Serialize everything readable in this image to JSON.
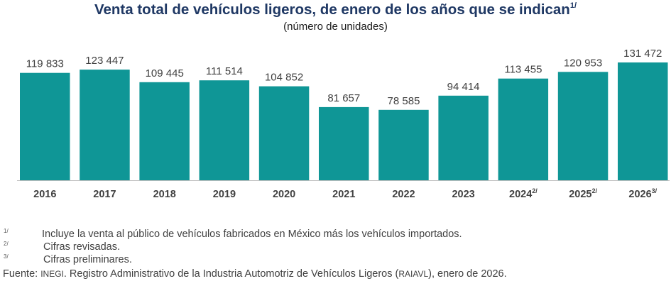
{
  "header": {
    "title": "Venta total de vehículos ligeros, de enero de los años que se indican",
    "title_mark": "1/",
    "subtitle": "(número de unidades)"
  },
  "chart_data": {
    "type": "bar",
    "title": "Venta total de vehículos ligeros, de enero de los años que se indican",
    "subtitle": "(número de unidades)",
    "categories": [
      "2016",
      "2017",
      "2018",
      "2019",
      "2020",
      "2021",
      "2022",
      "2023",
      "2024",
      "2025",
      "2026"
    ],
    "category_marks": [
      "",
      "",
      "",
      "",
      "",
      "",
      "",
      "",
      "2/",
      "2/",
      "3/"
    ],
    "values": [
      119833,
      123447,
      109445,
      111514,
      104852,
      81657,
      78585,
      94414,
      113455,
      120953,
      131472
    ],
    "value_labels": [
      "119 833",
      "123 447",
      "109 445",
      "111 514",
      "104 852",
      "81 657",
      "78 585",
      "94 414",
      "113 455",
      "120 953",
      "131 472"
    ],
    "xlabel": "",
    "ylabel": "",
    "ylim": [
      0,
      131472
    ],
    "grid": false,
    "legend": "none",
    "bar_color": "#0f9696"
  },
  "notes": [
    {
      "mark": "1/",
      "text": "Incluye la venta al público de vehículos fabricados en México más los vehículos importados."
    },
    {
      "mark": "2/",
      "text": "Cifras revisadas."
    },
    {
      "mark": "3/",
      "text": "Cifras preliminares."
    }
  ],
  "source": {
    "prefix": "Fuente: ",
    "org": "INEGI",
    "middle": ". Registro Administrativo de la Industria Automotriz de Vehículos Ligeros (",
    "abbr": "RAIAVL",
    "suffix": "), enero de 2026."
  }
}
